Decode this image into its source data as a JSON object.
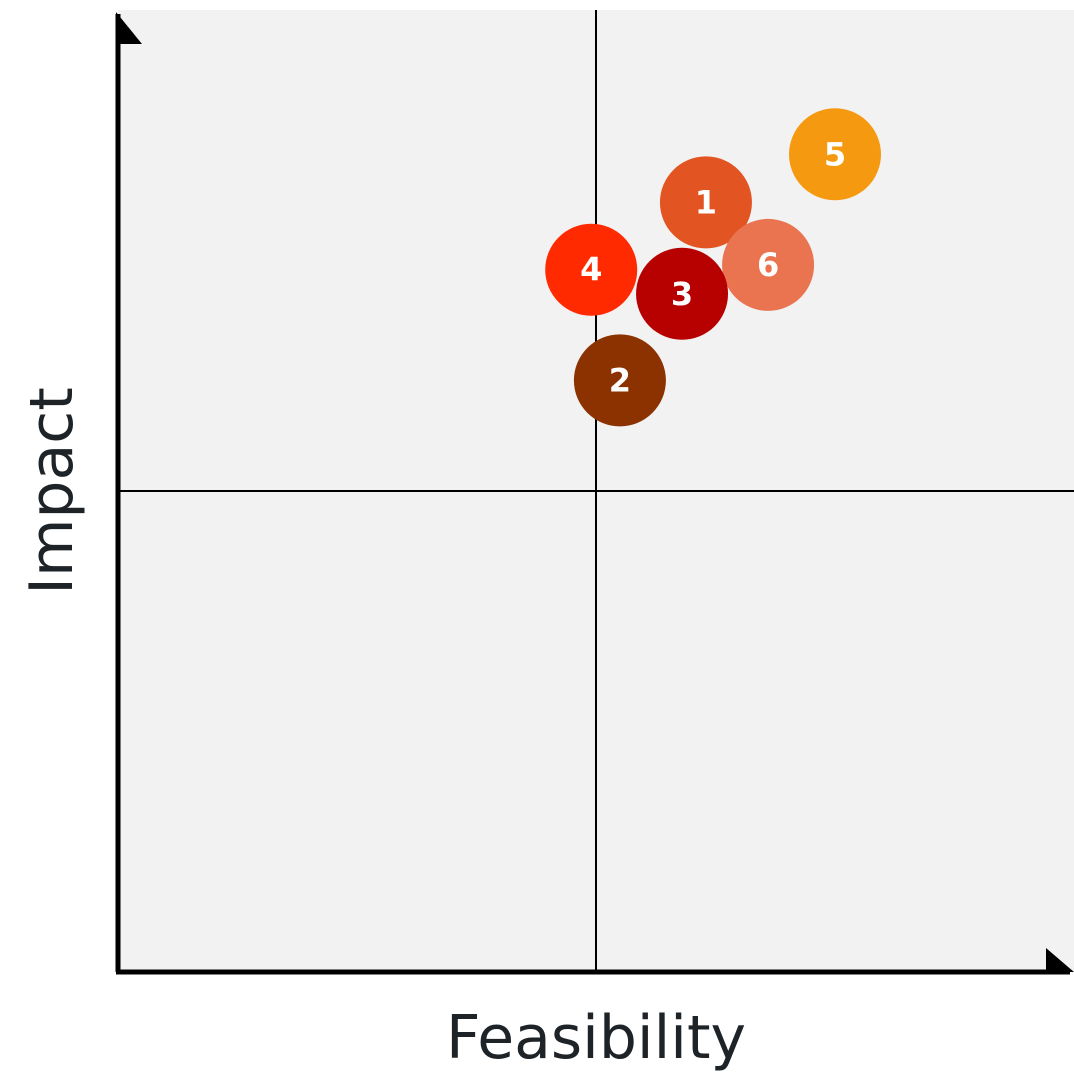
{
  "chart_data": {
    "type": "scatter",
    "title": "",
    "xlabel": "Feasibility",
    "ylabel": "Impact",
    "xlim": [
      0,
      10
    ],
    "ylim": [
      0,
      10
    ],
    "grid": false,
    "quadrant_divider": {
      "x": 5,
      "y": 5
    },
    "colors": {
      "plot_background": "#f2f2f2",
      "axis": "#000000",
      "divider": "#000000",
      "label_text": "#ffffff"
    },
    "points": [
      {
        "label": "1",
        "x": 6.15,
        "y": 8.0,
        "color": "#e25422"
      },
      {
        "label": "2",
        "x": 5.25,
        "y": 6.15,
        "color": "#8b3200"
      },
      {
        "label": "3",
        "x": 5.9,
        "y": 7.05,
        "color": "#b70000"
      },
      {
        "label": "4",
        "x": 4.95,
        "y": 7.3,
        "color": "#ff2a00"
      },
      {
        "label": "5",
        "x": 7.5,
        "y": 8.5,
        "color": "#f59a10"
      },
      {
        "label": "6",
        "x": 6.8,
        "y": 7.35,
        "color": "#ea7350"
      }
    ]
  }
}
